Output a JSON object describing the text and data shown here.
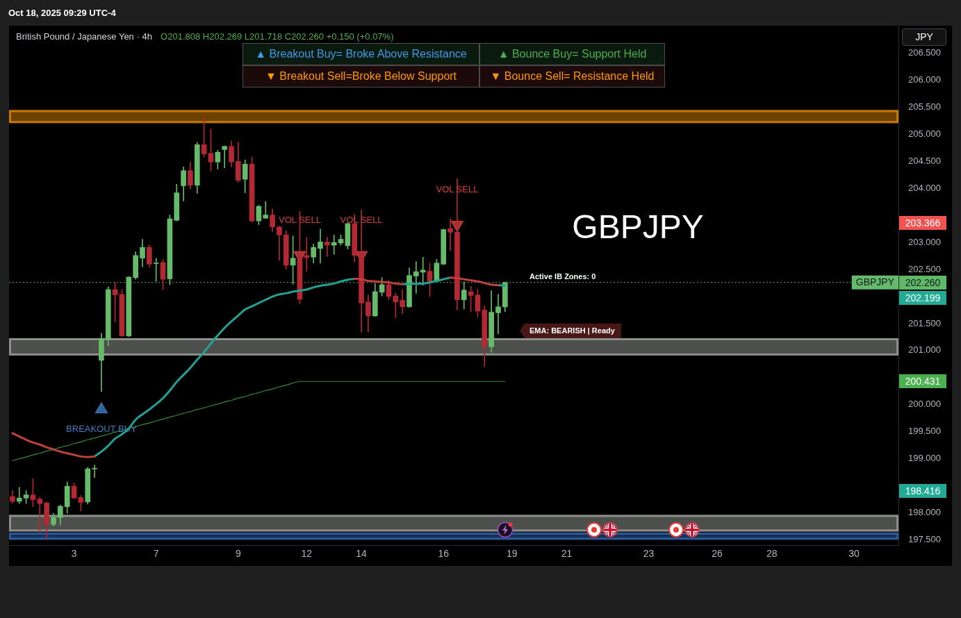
{
  "chart_data": {
    "type": "candlestick",
    "title": "British Pound / Japanese Yen · 4h",
    "subtitle": "O201.808 H202.269 L201.718 C202.260 +0.150 (+0.07%)",
    "ylabel": "JPY",
    "categories": [
      null,
      null,
      null,
      null,
      null,
      null,
      null,
      null,
      null,
      "3",
      null,
      null,
      null,
      null,
      null,
      null,
      null,
      null,
      null,
      null,
      null,
      "7",
      null,
      null,
      null,
      null,
      null,
      null,
      null,
      null,
      null,
      null,
      null,
      "9",
      null,
      null,
      null,
      null,
      null,
      null,
      null,
      null,
      null,
      "12",
      null,
      null,
      null,
      null,
      null,
      null,
      null,
      "14",
      null,
      null,
      null,
      null,
      null,
      null,
      null,
      null,
      null,
      null,
      null,
      "16",
      null,
      null,
      null,
      null,
      null,
      null,
      null,
      null,
      null,
      "19",
      null,
      null,
      null,
      null,
      null,
      null,
      null,
      "21",
      null,
      null,
      null,
      null,
      null,
      null,
      null,
      null,
      null,
      null,
      null,
      "23",
      null,
      null,
      null,
      null,
      null,
      null,
      null,
      null,
      null,
      "26",
      null,
      null,
      null,
      null,
      null,
      null,
      null,
      "28",
      null,
      null,
      null,
      null,
      null,
      null,
      null,
      null,
      null,
      null,
      null,
      "30",
      null,
      null,
      null,
      null,
      null,
      null
    ],
    "series": [
      {
        "name": "GBPJPY",
        "ohlc": [
          [
            198.3,
            198.41,
            198.18,
            198.21
          ],
          [
            198.21,
            198.47,
            198.17,
            198.27
          ],
          [
            198.27,
            198.41,
            198.17,
            198.33
          ],
          [
            198.33,
            198.63,
            198.11,
            198.24
          ],
          [
            198.25,
            198.29,
            197.62,
            198.17
          ],
          [
            198.18,
            198.2,
            197.5,
            197.78
          ],
          [
            197.78,
            197.99,
            197.75,
            197.91
          ],
          [
            197.91,
            198.14,
            197.77,
            198.12
          ],
          [
            198.11,
            198.57,
            197.99,
            198.49
          ],
          [
            198.49,
            198.55,
            198.26,
            198.27
          ],
          [
            198.28,
            198.32,
            198.03,
            198.19
          ],
          [
            198.2,
            198.84,
            198.16,
            198.81
          ],
          [
            198.81,
            198.88,
            198.65,
            198.82
          ],
          [
            200.82,
            201.32,
            200.24,
            201.22
          ],
          [
            201.21,
            202.18,
            201.09,
            202.13
          ],
          [
            202.13,
            202.26,
            201.53,
            202.03
          ],
          [
            202.04,
            202.13,
            201.26,
            201.27
          ],
          [
            201.27,
            202.37,
            201.26,
            202.36
          ],
          [
            202.35,
            202.83,
            202.32,
            202.76
          ],
          [
            202.71,
            203.06,
            202.55,
            202.91
          ],
          [
            202.91,
            202.95,
            202.54,
            202.6
          ],
          [
            202.61,
            202.71,
            202.28,
            202.62
          ],
          [
            202.63,
            202.69,
            202.13,
            202.32
          ],
          [
            202.33,
            203.51,
            202.22,
            203.44
          ],
          [
            203.41,
            204.08,
            203.4,
            203.92
          ],
          [
            204.05,
            204.4,
            203.77,
            204.33
          ],
          [
            204.33,
            204.49,
            203.99,
            204.06
          ],
          [
            204.06,
            204.85,
            203.91,
            204.81
          ],
          [
            204.81,
            205.33,
            204.58,
            204.64
          ],
          [
            204.65,
            205.1,
            204.32,
            204.49
          ],
          [
            204.49,
            204.71,
            204.36,
            204.67
          ],
          [
            204.72,
            204.79,
            204.38,
            204.78
          ],
          [
            204.78,
            204.88,
            204.4,
            204.49
          ],
          [
            204.5,
            204.86,
            204.12,
            204.15
          ],
          [
            204.17,
            204.53,
            203.92,
            204.45
          ],
          [
            204.45,
            204.58,
            203.38,
            203.4
          ],
          [
            203.4,
            203.69,
            203.33,
            203.67
          ],
          [
            203.45,
            203.76,
            203.44,
            203.51
          ],
          [
            203.51,
            203.62,
            203.2,
            203.29
          ],
          [
            203.29,
            203.3,
            202.67,
            203.14
          ],
          [
            203.14,
            203.22,
            202.51,
            202.58
          ],
          [
            202.58,
            203.12,
            202.23,
            202.71
          ],
          [
            202.74,
            203.58,
            201.87,
            201.95
          ],
          [
            202.76,
            203.1,
            202.47,
            202.72
          ],
          [
            202.73,
            202.97,
            202.62,
            202.91
          ],
          [
            202.89,
            203.25,
            202.62,
            203.01
          ],
          [
            203.01,
            203.1,
            202.74,
            202.95
          ],
          [
            202.95,
            203.14,
            202.78,
            203.0
          ],
          [
            202.99,
            203.14,
            202.95,
            203.06
          ],
          [
            202.94,
            203.36,
            202.88,
            203.35
          ],
          [
            203.35,
            203.52,
            202.64,
            202.76
          ],
          [
            202.77,
            203.6,
            201.34,
            201.88
          ],
          [
            201.9,
            202.03,
            201.34,
            201.64
          ],
          [
            201.64,
            202.24,
            201.63,
            202.09
          ],
          [
            202.08,
            202.35,
            202.01,
            202.22
          ],
          [
            202.22,
            202.3,
            201.94,
            202.0
          ],
          [
            202.01,
            202.06,
            201.61,
            201.9
          ],
          [
            201.93,
            202.13,
            201.68,
            201.81
          ],
          [
            201.81,
            202.53,
            201.8,
            202.39
          ],
          [
            202.38,
            202.65,
            202.06,
            202.46
          ],
          [
            202.45,
            202.73,
            202.21,
            202.49
          ],
          [
            202.47,
            202.62,
            202.0,
            202.28
          ],
          [
            202.28,
            202.69,
            202.27,
            202.62
          ],
          [
            202.6,
            203.25,
            202.59,
            203.24
          ],
          [
            203.26,
            203.44,
            202.85,
            203.19
          ],
          [
            203.19,
            204.18,
            201.75,
            201.94
          ],
          [
            201.94,
            202.27,
            201.77,
            202.12
          ],
          [
            202.09,
            202.19,
            201.72,
            202.02
          ],
          [
            202.03,
            202.14,
            201.62,
            201.73
          ],
          [
            201.75,
            201.83,
            200.7,
            201.07
          ],
          [
            201.07,
            202.11,
            200.97,
            201.71
          ],
          [
            201.7,
            202.04,
            201.31,
            201.81
          ],
          [
            201.808,
            202.269,
            201.718,
            202.26
          ],
          null,
          null,
          null,
          null,
          null,
          null,
          null,
          null,
          null,
          null,
          null,
          null,
          null,
          null,
          null,
          null,
          null,
          null,
          null,
          null,
          null,
          null,
          null,
          null,
          null,
          null,
          null,
          null,
          null,
          null,
          null,
          null,
          null,
          null,
          null,
          null,
          null,
          null,
          null,
          null,
          null,
          null,
          null,
          null,
          null,
          null,
          null,
          null,
          null,
          null,
          null,
          null,
          null,
          null,
          null,
          null,
          null
        ],
        "colors": [
          "#b22833",
          "#66bb6a",
          "#66bb6a",
          "#b22833",
          "#b22833",
          "#b22833",
          "#66bb6a",
          "#66bb6a",
          "#66bb6a",
          "#b22833",
          "#b22833",
          "#66bb6a",
          "#66bb6a",
          "#66bb6a",
          "#66bb6a",
          "#b22833",
          "#b22833",
          "#66bb6a",
          "#66bb6a",
          "#66bb6a",
          "#b22833",
          "#66bb6a",
          "#b22833",
          "#66bb6a",
          "#66bb6a",
          "#66bb6a",
          "#b22833",
          "#66bb6a",
          "#b22833",
          "#b22833",
          "#66bb6a",
          "#66bb6a",
          "#b22833",
          "#b22833",
          "#66bb6a",
          "#b22833",
          "#66bb6a",
          "#66bb6a",
          "#b22833",
          "#b22833",
          "#b22833",
          "#66bb6a",
          "#b22833",
          "#b22833",
          "#66bb6a",
          "#66bb6a",
          "#b22833",
          "#66bb6a",
          "#66bb6a",
          "#66bb6a",
          "#b22833",
          "#b22833",
          "#b22833",
          "#66bb6a",
          "#66bb6a",
          "#b22833",
          "#b22833",
          "#b22833",
          "#66bb6a",
          "#66bb6a",
          "#66bb6a",
          "#b22833",
          "#66bb6a",
          "#66bb6a",
          "#b22833",
          "#b22833",
          "#66bb6a",
          "#b22833",
          "#b22833",
          "#b22833",
          "#66bb6a",
          "#66bb6a",
          "#66bb6a",
          null,
          null,
          null,
          null,
          null,
          null,
          null,
          null,
          null,
          null,
          null,
          null,
          null,
          null,
          null,
          null,
          null,
          null,
          null,
          null,
          null,
          null,
          null,
          null,
          null,
          null,
          null,
          null,
          null,
          null,
          null,
          null,
          null,
          null,
          null,
          null,
          null,
          null,
          null,
          null,
          null,
          null,
          null,
          null,
          null,
          null,
          null,
          null,
          null,
          null,
          null,
          null,
          null,
          null,
          null,
          null,
          null
        ]
      },
      {
        "type": "line",
        "color": "#c0403c",
        "values": [
          199.47,
          199.41,
          199.35,
          199.3,
          199.26,
          199.21,
          199.17,
          199.13,
          199.1,
          199.07,
          199.04,
          199.03,
          199.04,
          null,
          null,
          null,
          null,
          null,
          null,
          null,
          null,
          null,
          null,
          null,
          null,
          null,
          null,
          null,
          null,
          null,
          null,
          null,
          null,
          null,
          null,
          null,
          null,
          null,
          null,
          null,
          null,
          null,
          null,
          null,
          null,
          null,
          null,
          null,
          null,
          null,
          202.33,
          202.32,
          202.29,
          202.28,
          202.27,
          202.26,
          202.24,
          202.23,
          null,
          null,
          null,
          null,
          null,
          null,
          202.35,
          202.34,
          202.32,
          202.3,
          202.28,
          202.25,
          202.22,
          202.21,
          null,
          null,
          null,
          null,
          null,
          null,
          null,
          null,
          null,
          null,
          null,
          null,
          null,
          null,
          null,
          null,
          null,
          null,
          null,
          null,
          null,
          null,
          null,
          null,
          null,
          null,
          null,
          null,
          null,
          null,
          null,
          null,
          null,
          null,
          null,
          null,
          null,
          null,
          null,
          null,
          null,
          null,
          null,
          null,
          null,
          null,
          null,
          null,
          null,
          null,
          null,
          null,
          null,
          null,
          null,
          null,
          null,
          null
        ]
      },
      {
        "type": "line",
        "color": "#22a094",
        "values": [
          null,
          null,
          null,
          null,
          null,
          null,
          null,
          null,
          null,
          null,
          null,
          null,
          199.04,
          199.13,
          199.24,
          199.37,
          199.45,
          199.56,
          199.72,
          199.82,
          199.91,
          200.01,
          200.12,
          200.26,
          200.42,
          200.55,
          200.68,
          200.83,
          200.97,
          201.13,
          201.28,
          201.42,
          201.54,
          201.65,
          201.76,
          201.82,
          201.88,
          201.94,
          202.0,
          202.04,
          202.06,
          202.09,
          202.11,
          202.13,
          202.17,
          202.2,
          202.22,
          202.24,
          202.28,
          202.31,
          202.33,
          null,
          null,
          null,
          null,
          null,
          null,
          202.23,
          202.23,
          202.24,
          202.24,
          202.26,
          202.29,
          202.32,
          202.35,
          null,
          null,
          null,
          null,
          null,
          null,
          202.21,
          202.2,
          null,
          null,
          null,
          null,
          null,
          null,
          null,
          null,
          null,
          null,
          null,
          null,
          null,
          null,
          null,
          null,
          null,
          null,
          null,
          null,
          null,
          null,
          null,
          null,
          null,
          null,
          null,
          null,
          null,
          null,
          null,
          null,
          null,
          null,
          null,
          null,
          null,
          null,
          null,
          null,
          null,
          null,
          null,
          null,
          null,
          null,
          null,
          null,
          null,
          null,
          null,
          null,
          null,
          null,
          null,
          null,
          null
        ]
      },
      {
        "type": "line",
        "color": "#2f8a34",
        "values": [
          198.96,
          199.0,
          199.03,
          199.07,
          199.1,
          199.14,
          199.17,
          199.21,
          199.24,
          199.28,
          199.31,
          199.35,
          199.38,
          199.42,
          199.45,
          199.49,
          199.52,
          199.56,
          199.59,
          199.63,
          199.66,
          199.7,
          199.73,
          199.77,
          199.8,
          199.84,
          199.87,
          199.91,
          199.94,
          199.98,
          200.01,
          200.05,
          200.08,
          200.12,
          200.15,
          200.19,
          200.22,
          200.26,
          200.29,
          200.33,
          200.36,
          200.4,
          200.43,
          200.43,
          200.43,
          200.43,
          200.43,
          200.43,
          200.43,
          200.43,
          200.43,
          200.43,
          200.43,
          200.43,
          200.43,
          200.43,
          200.43,
          200.43,
          200.43,
          200.43,
          200.43,
          200.43,
          200.43,
          200.43,
          200.43,
          200.43,
          200.43,
          200.43,
          200.43,
          200.43,
          200.43,
          200.43,
          200.43,
          null,
          null,
          null,
          null,
          null,
          null,
          null,
          null,
          null,
          null,
          null,
          null,
          null,
          null,
          null,
          null,
          null,
          null,
          null,
          null,
          null,
          null,
          null,
          null,
          null,
          null,
          null,
          null,
          null,
          null,
          null,
          null,
          null,
          null,
          null,
          null,
          null,
          null,
          null,
          null,
          null,
          null,
          null,
          null,
          null,
          null,
          null,
          null,
          null,
          null,
          null,
          null,
          null,
          null,
          null,
          null,
          null
        ]
      },
      {
        "type": "scatter",
        "name": "VOL SELL",
        "color": "#d8403c",
        "marker": "triangle",
        "values": [
          null,
          null,
          null,
          null,
          null,
          null,
          null,
          null,
          null,
          null,
          null,
          null,
          null,
          null,
          null,
          null,
          null,
          null,
          null,
          null,
          null,
          null,
          null,
          null,
          null,
          null,
          null,
          null,
          null,
          null,
          null,
          null,
          null,
          null,
          null,
          null,
          null,
          null,
          null,
          null,
          null,
          null,
          202.77,
          null,
          null,
          null,
          null,
          null,
          null,
          null,
          null,
          202.77,
          null,
          null,
          null,
          null,
          null,
          null,
          null,
          null,
          null,
          null,
          null,
          null,
          null,
          203.33,
          null,
          null,
          null,
          null,
          null,
          null,
          null,
          null,
          null,
          null,
          null,
          null,
          null,
          null,
          null,
          null,
          null,
          null,
          null,
          null,
          null,
          null,
          null,
          null,
          null,
          null,
          null,
          null,
          null,
          null,
          null,
          null,
          null,
          null,
          null,
          null,
          null,
          null,
          null,
          null,
          null,
          null,
          null,
          null,
          null,
          null,
          null,
          null,
          null,
          null,
          null,
          null,
          null,
          null,
          null,
          null,
          null,
          null,
          null,
          null,
          null,
          null,
          null,
          null
        ]
      },
      {
        "type": "scatter",
        "name": "BREAKOUT BUY",
        "color": "#3f7fc0",
        "marker": "triangle",
        "values": [
          null,
          null,
          null,
          null,
          null,
          null,
          null,
          null,
          null,
          null,
          null,
          null,
          null,
          199.91,
          null,
          null,
          null,
          null,
          null,
          null,
          null,
          null,
          null,
          null,
          null,
          null,
          null,
          null,
          null,
          null,
          null,
          null,
          null,
          null,
          null,
          null,
          null,
          null,
          null,
          null,
          null,
          null,
          null,
          null,
          null,
          null,
          null,
          null,
          null,
          null,
          null,
          null,
          null,
          null,
          null,
          null,
          null,
          null,
          null,
          null,
          null,
          null,
          null,
          null,
          null,
          null,
          null,
          null,
          null,
          null,
          null,
          null,
          null,
          null,
          null,
          null,
          null,
          null,
          null,
          null,
          null,
          null,
          null,
          null,
          null,
          null,
          null,
          null,
          null,
          null,
          null,
          null,
          null,
          null,
          null,
          null,
          null,
          null,
          null,
          null,
          null,
          null,
          null,
          null,
          null,
          null,
          null,
          null,
          null,
          null,
          null,
          null,
          null,
          null,
          null,
          null,
          null,
          null,
          null,
          null,
          null,
          null,
          null,
          null,
          null,
          null,
          null,
          null,
          null,
          null
        ]
      }
    ],
    "ylim": [
      197.4,
      207.0
    ],
    "yticks": [
      {
        "value": 197.5,
        "label": "197.500"
      },
      {
        "value": 198,
        "label": "198.000"
      },
      {
        "value": 199,
        "label": "199.000"
      },
      {
        "value": 199.5,
        "label": "199.500"
      },
      {
        "value": 200,
        "label": "200.000"
      },
      {
        "value": 201,
        "label": "201.000"
      },
      {
        "value": 201.5,
        "label": "201.500"
      },
      {
        "value": 202.5,
        "label": "202.500"
      },
      {
        "value": 203,
        "label": "203.000"
      },
      {
        "value": 204,
        "label": "204.000"
      },
      {
        "value": 204.5,
        "label": "204.500"
      },
      {
        "value": 205,
        "label": "205.000"
      },
      {
        "value": 205.5,
        "label": "205.500"
      },
      {
        "value": 206,
        "label": "206.000"
      },
      {
        "value": 206.5,
        "label": "206.500"
      }
    ],
    "bands": [
      {
        "axis": "y",
        "from": 205.21,
        "to": 205.45,
        "color": "#c77800"
      },
      {
        "axis": "y",
        "from": 200.91,
        "to": 201.23,
        "color": "#8a8f8a"
      },
      {
        "axis": "y",
        "from": 197.65,
        "to": 197.96,
        "color": "#8a8f8a"
      },
      {
        "axis": "y",
        "from": 197.5,
        "to": 197.63,
        "color": "#2a5a9a"
      }
    ],
    "ref_lines": [
      {
        "axis": "y",
        "value": 202.26,
        "label": "202.260",
        "color": "#5fb865",
        "line_style": "dotted"
      }
    ],
    "annotations": [
      "Oct 18, 2025 09:29 UTC-4",
      "▲ Breakout Buy= Broke Above Resistance",
      "▲ Bounce Buy= Support Held",
      "▼ Breakout Sell=Broke Below Support",
      "▼ Bounce Sell= Resistance Held",
      "GBPJPY",
      "Active IB Zones: 0",
      "EMA: BEARISH | Ready",
      "203.366",
      "202.199",
      "200.431",
      "198.416"
    ],
    "legend": false,
    "grid": false
  }
}
